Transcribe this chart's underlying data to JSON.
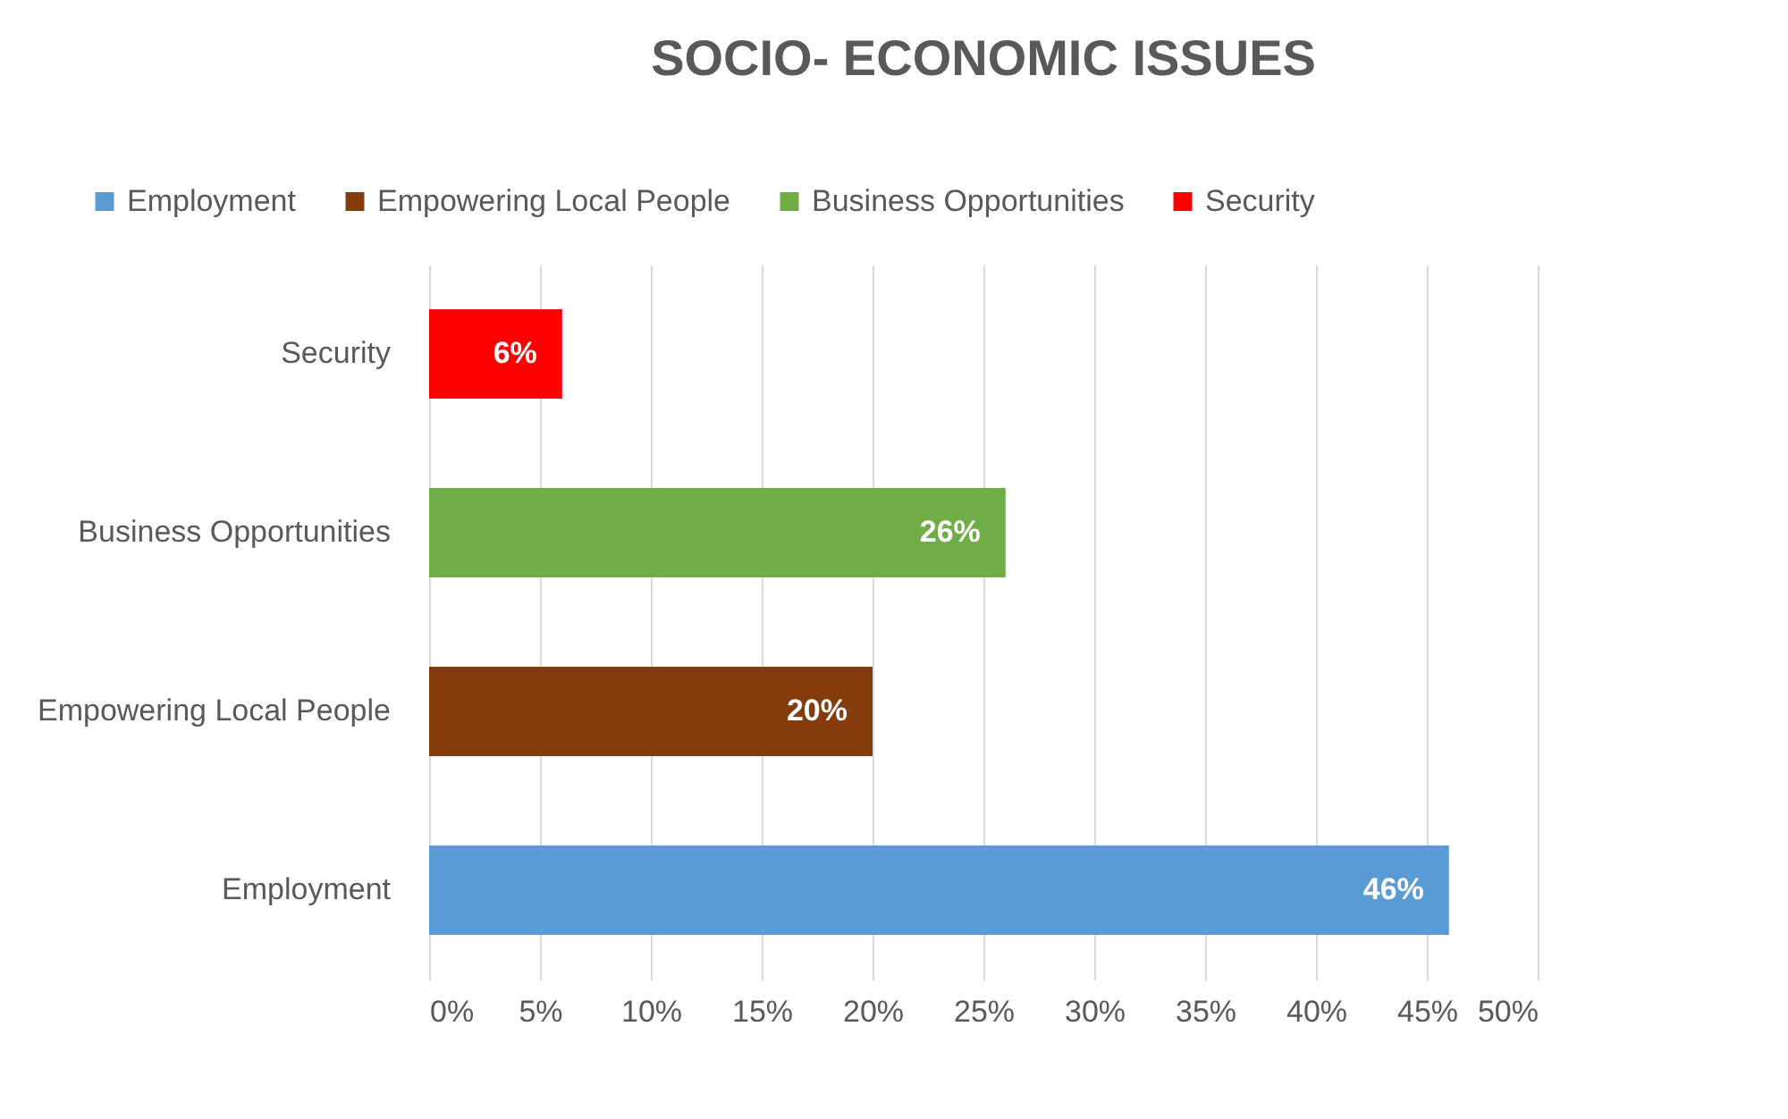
{
  "chart_data": {
    "type": "bar",
    "orientation": "horizontal",
    "title": "SOCIO- ECONOMIC ISSUES",
    "categories": [
      "Security",
      "Business Opportunities",
      "Empowering Local People",
      "Employment"
    ],
    "series": [
      {
        "name": "Employment",
        "color": "#5b9bd5",
        "values": [
          null,
          null,
          null,
          46
        ],
        "value_labels": [
          null,
          null,
          null,
          "46%"
        ]
      },
      {
        "name": "Empowering Local People",
        "color": "#843c0c",
        "values": [
          null,
          null,
          20,
          null
        ],
        "value_labels": [
          null,
          null,
          "20%",
          null
        ]
      },
      {
        "name": "Business Opportunities",
        "color": "#70ad47",
        "values": [
          null,
          26,
          null,
          null
        ],
        "value_labels": [
          null,
          "26%",
          null,
          null
        ]
      },
      {
        "name": "Security",
        "color": "#ff0000",
        "values": [
          6,
          null,
          null,
          null
        ],
        "value_labels": [
          "6%",
          null,
          null,
          null
        ]
      }
    ],
    "xlim": [
      0,
      50
    ],
    "xticks": [
      {
        "value": 0,
        "label": "0%"
      },
      {
        "value": 5,
        "label": "5%"
      },
      {
        "value": 10,
        "label": "10%"
      },
      {
        "value": 15,
        "label": "15%"
      },
      {
        "value": 20,
        "label": "20%"
      },
      {
        "value": 25,
        "label": "25%"
      },
      {
        "value": 30,
        "label": "30%"
      },
      {
        "value": 35,
        "label": "35%"
      },
      {
        "value": 40,
        "label": "40%"
      },
      {
        "value": 45,
        "label": "45%"
      },
      {
        "value": 50,
        "label": "50%"
      }
    ],
    "grid": "x",
    "legend": "top"
  }
}
